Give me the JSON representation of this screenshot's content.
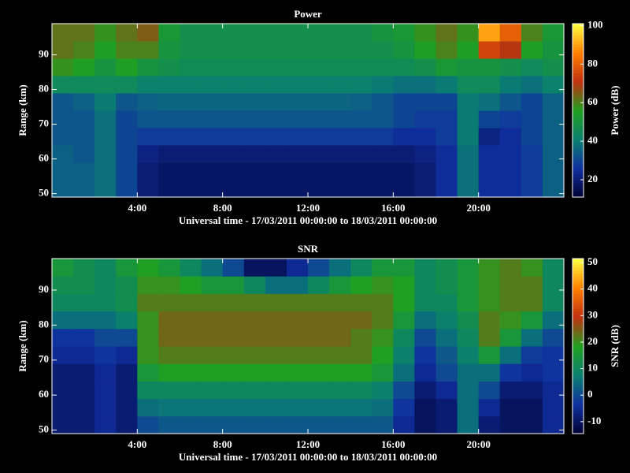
{
  "chart_data": [
    {
      "type": "heatmap",
      "title": "Power",
      "ylabel": "Range (km)",
      "xlabel": "Universal time - 17/03/2011 00:00:00 to 18/03/2011 00:00:00",
      "xlim": [
        0,
        24
      ],
      "ylim": [
        49,
        99
      ],
      "xticks": [
        {
          "value": 4,
          "label": "4:00"
        },
        {
          "value": 8,
          "label": "8:00"
        },
        {
          "value": 12,
          "label": "12:00"
        },
        {
          "value": 16,
          "label": "16:00"
        },
        {
          "value": 20,
          "label": "20:00"
        }
      ],
      "yticks": [
        50,
        60,
        70,
        80,
        90
      ],
      "xbins": [
        0,
        1,
        2,
        3,
        4,
        5,
        6,
        7,
        8,
        9,
        10,
        11,
        12,
        13,
        14,
        15,
        16,
        17,
        18,
        19,
        20,
        21,
        22,
        23,
        24
      ],
      "ybins": [
        49,
        54,
        59,
        64,
        69,
        74,
        79,
        84,
        89,
        94,
        99
      ],
      "values": [
        [
          35,
          35,
          38,
          30,
          20,
          18,
          18,
          18,
          18,
          18,
          18,
          18,
          18,
          18,
          18,
          18,
          18,
          20,
          25,
          38,
          25,
          25,
          28,
          35
        ],
        [
          35,
          35,
          38,
          30,
          20,
          18,
          18,
          18,
          18,
          18,
          18,
          18,
          18,
          18,
          18,
          18,
          18,
          20,
          25,
          38,
          25,
          25,
          28,
          35
        ],
        [
          35,
          33,
          38,
          30,
          22,
          20,
          20,
          20,
          20,
          20,
          20,
          20,
          20,
          20,
          20,
          20,
          20,
          22,
          25,
          38,
          25,
          25,
          28,
          35
        ],
        [
          33,
          33,
          38,
          30,
          28,
          28,
          28,
          28,
          28,
          28,
          28,
          28,
          28,
          28,
          28,
          28,
          25,
          25,
          28,
          40,
          22,
          25,
          30,
          35
        ],
        [
          33,
          33,
          38,
          30,
          33,
          33,
          33,
          33,
          33,
          33,
          33,
          33,
          33,
          33,
          33,
          33,
          30,
          28,
          28,
          40,
          30,
          28,
          30,
          35
        ],
        [
          33,
          35,
          40,
          33,
          35,
          36,
          36,
          36,
          36,
          36,
          36,
          36,
          36,
          36,
          35,
          33,
          30,
          30,
          30,
          40,
          38,
          33,
          30,
          35
        ],
        [
          45,
          45,
          45,
          45,
          42,
          42,
          42,
          42,
          42,
          42,
          42,
          42,
          42,
          42,
          42,
          40,
          38,
          38,
          40,
          45,
          45,
          40,
          38,
          42
        ],
        [
          58,
          55,
          50,
          55,
          50,
          48,
          46,
          46,
          46,
          46,
          46,
          46,
          46,
          46,
          46,
          46,
          46,
          48,
          52,
          50,
          50,
          48,
          45,
          48
        ],
        [
          62,
          60,
          55,
          60,
          60,
          50,
          48,
          48,
          48,
          48,
          48,
          48,
          48,
          48,
          48,
          48,
          50,
          55,
          60,
          55,
          75,
          70,
          55,
          50
        ],
        [
          62,
          62,
          58,
          62,
          65,
          52,
          48,
          48,
          48,
          48,
          48,
          48,
          48,
          48,
          48,
          50,
          52,
          58,
          62,
          58,
          90,
          80,
          60,
          52
        ]
      ],
      "colorbar": {
        "label": "Power (dB)",
        "lim": [
          11,
          101
        ],
        "ticks": [
          20,
          40,
          60,
          80,
          100
        ]
      },
      "colormap": [
        "#000030",
        "#1030a0",
        "#0a8070",
        "#20a020",
        "#c03010",
        "#ff8000",
        "#ffff40"
      ]
    },
    {
      "type": "heatmap",
      "title": "SNR",
      "ylabel": "Range (km)",
      "xlabel": "Universal time - 17/03/2011 00:00:00 to 18/03/2011 00:00:00",
      "xlim": [
        0,
        24
      ],
      "ylim": [
        49,
        99
      ],
      "xticks": [
        {
          "value": 4,
          "label": "4:00"
        },
        {
          "value": 8,
          "label": "8:00"
        },
        {
          "value": 12,
          "label": "12:00"
        },
        {
          "value": 16,
          "label": "16:00"
        },
        {
          "value": 20,
          "label": "20:00"
        }
      ],
      "yticks": [
        50,
        60,
        70,
        80,
        90
      ],
      "xbins": [
        0,
        1,
        2,
        3,
        4,
        5,
        6,
        7,
        8,
        9,
        10,
        11,
        12,
        13,
        14,
        15,
        16,
        17,
        18,
        19,
        20,
        21,
        22,
        23,
        24
      ],
      "ybins": [
        49,
        54,
        59,
        64,
        69,
        74,
        79,
        84,
        89,
        94,
        99
      ],
      "values": [
        [
          -8,
          -8,
          -5,
          -8,
          0,
          2,
          2,
          2,
          2,
          2,
          2,
          2,
          2,
          2,
          2,
          2,
          -5,
          -10,
          -8,
          5,
          -8,
          -10,
          -10,
          -5
        ],
        [
          -8,
          -8,
          -5,
          -8,
          5,
          6,
          6,
          6,
          6,
          6,
          6,
          6,
          6,
          6,
          6,
          5,
          -3,
          -10,
          -8,
          5,
          -5,
          -10,
          -10,
          -5
        ],
        [
          -8,
          -8,
          -5,
          -8,
          10,
          10,
          10,
          10,
          10,
          10,
          10,
          10,
          10,
          10,
          10,
          8,
          0,
          -8,
          -5,
          5,
          0,
          -8,
          -8,
          -5
        ],
        [
          -8,
          -8,
          -5,
          -8,
          15,
          18,
          18,
          18,
          18,
          18,
          18,
          18,
          18,
          18,
          18,
          15,
          5,
          -5,
          0,
          5,
          5,
          -3,
          -5,
          -3
        ],
        [
          -5,
          -5,
          -3,
          -5,
          20,
          22,
          22,
          22,
          22,
          22,
          22,
          22,
          22,
          22,
          22,
          18,
          8,
          -3,
          2,
          8,
          15,
          5,
          -2,
          -3
        ],
        [
          -3,
          -3,
          0,
          0,
          20,
          24,
          24,
          24,
          24,
          24,
          24,
          24,
          24,
          24,
          22,
          20,
          10,
          0,
          5,
          10,
          22,
          15,
          5,
          0
        ],
        [
          5,
          5,
          5,
          8,
          20,
          24,
          24,
          24,
          24,
          24,
          24,
          24,
          24,
          24,
          24,
          22,
          15,
          5,
          8,
          12,
          22,
          20,
          15,
          5
        ],
        [
          10,
          10,
          10,
          12,
          22,
          22,
          22,
          22,
          22,
          22,
          22,
          22,
          22,
          22,
          22,
          22,
          18,
          10,
          10,
          15,
          20,
          22,
          22,
          10
        ],
        [
          12,
          12,
          10,
          12,
          20,
          20,
          18,
          15,
          15,
          10,
          5,
          5,
          10,
          15,
          18,
          20,
          18,
          10,
          12,
          15,
          20,
          22,
          22,
          10
        ],
        [
          15,
          12,
          10,
          15,
          18,
          15,
          10,
          5,
          0,
          -10,
          -10,
          -5,
          0,
          5,
          10,
          15,
          15,
          10,
          12,
          15,
          20,
          22,
          20,
          10
        ]
      ],
      "colorbar": {
        "label": "SNR (dB)",
        "lim": [
          -14.5,
          51.5
        ],
        "ticks": [
          -10,
          0,
          10,
          20,
          30,
          40,
          50
        ]
      },
      "colormap": [
        "#000030",
        "#1030a0",
        "#0a8070",
        "#20a020",
        "#c03010",
        "#ff8000",
        "#ffff40"
      ]
    }
  ]
}
